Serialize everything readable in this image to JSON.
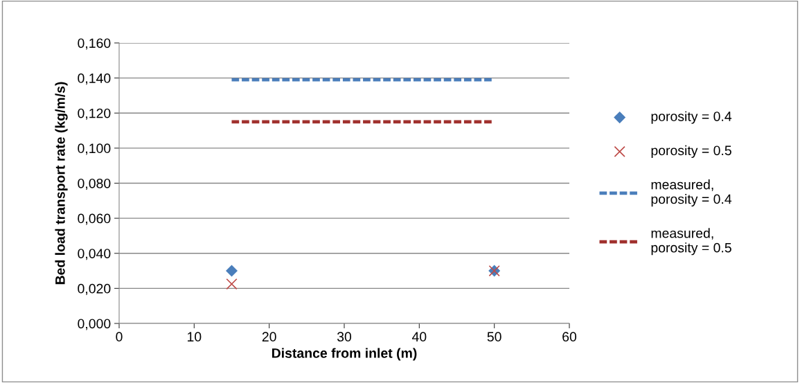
{
  "chart_data": {
    "type": "scatter",
    "xlabel": "Distance from inlet (m)",
    "ylabel": "Bed load transport rate (kg/m/s)",
    "xlim": [
      0,
      60
    ],
    "xticks": [
      0,
      10,
      20,
      30,
      40,
      50,
      60
    ],
    "ylim": [
      0,
      0.16
    ],
    "yticks": [
      {
        "value": 0,
        "label": "0,000"
      },
      {
        "value": 0.02,
        "label": "0,020"
      },
      {
        "value": 0.04,
        "label": "0,040"
      },
      {
        "value": 0.06,
        "label": "0,060"
      },
      {
        "value": 0.08,
        "label": "0,080"
      },
      {
        "value": 0.1,
        "label": "0,100"
      },
      {
        "value": 0.12,
        "label": "0,120"
      },
      {
        "value": 0.14,
        "label": "0,140"
      },
      {
        "value": 0.16,
        "label": "0,160"
      }
    ],
    "grid": "y",
    "legend": "right",
    "x": [
      15,
      50
    ],
    "series": [
      {
        "name": "porosity = 0.4",
        "marker": "diamond",
        "color": "#4a7ebb",
        "values": [
          0.03,
          0.03
        ]
      },
      {
        "name": "porosity = 0.5",
        "marker": "cross",
        "color": "#be4b48",
        "values": [
          0.0225,
          0.03
        ]
      },
      {
        "name": "measured,\nporosity = 0.4",
        "type": "line",
        "line_style": "dashed",
        "color": "#4a7ebb",
        "values": [
          0.139,
          0.139
        ]
      },
      {
        "name": "measured,\nporosity = 0.5",
        "type": "line",
        "line_style": "dashed",
        "color": "#a0302d",
        "values": [
          0.115,
          0.115
        ]
      }
    ]
  }
}
